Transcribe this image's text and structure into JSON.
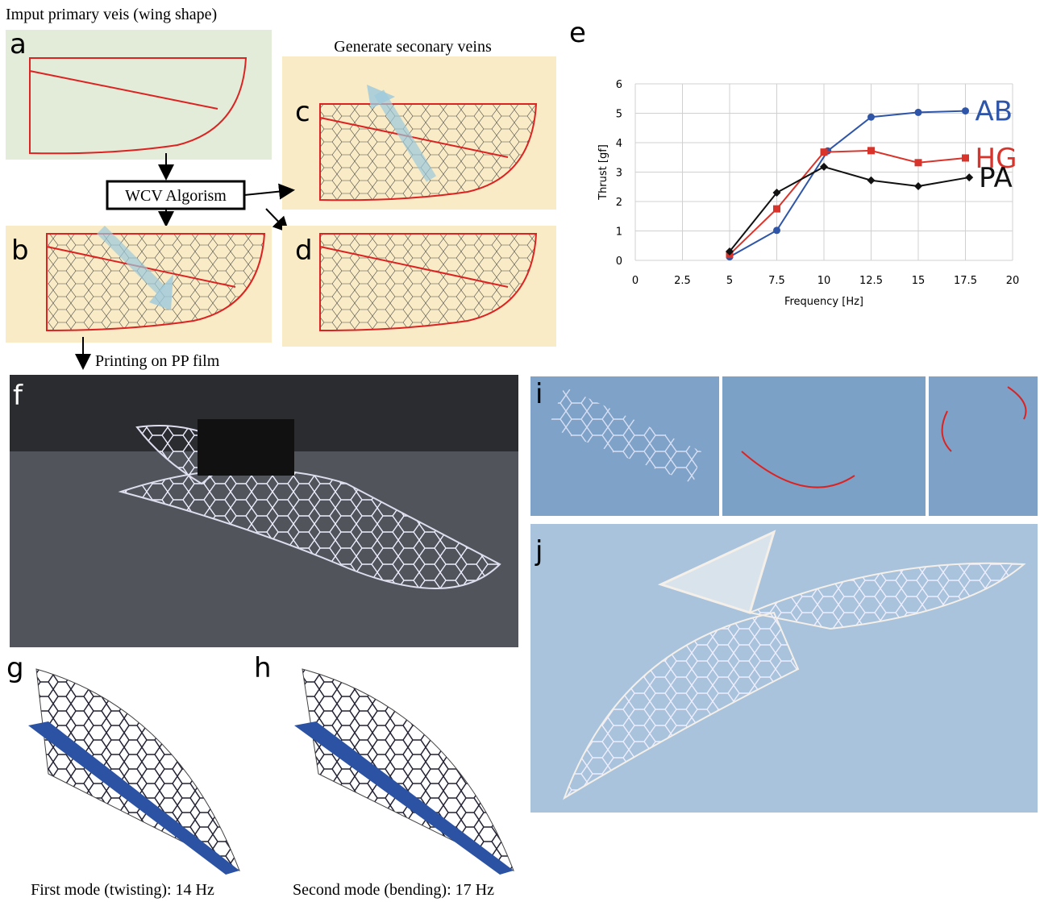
{
  "panels": {
    "a": {
      "letter": "a",
      "caption": "Imput primary veis (wing shape)"
    },
    "b": {
      "letter": "b"
    },
    "c": {
      "letter": "c",
      "caption": "Generate seconary veins"
    },
    "d": {
      "letter": "d"
    },
    "algorithm": "WCV Algorism",
    "printing": "Printing on PP film",
    "f": {
      "letter": "f"
    },
    "g": {
      "letter": "g",
      "caption": "First mode (twisting): 14 Hz"
    },
    "h": {
      "letter": "h",
      "caption": "Second mode (bending): 17 Hz"
    },
    "i": {
      "letter": "i"
    },
    "j": {
      "letter": "j"
    },
    "e": {
      "letter": "e"
    }
  },
  "chart_data": {
    "type": "line",
    "x_label": "Frequency [Hz]",
    "y_label": "Thrust [gf]",
    "xlim": [
      0,
      20
    ],
    "xticks": [
      0,
      2.5,
      5,
      7.5,
      10,
      12.5,
      15,
      17.5,
      20
    ],
    "ylim": [
      0,
      6
    ],
    "yticks": [
      0,
      1,
      2,
      3,
      4,
      5,
      6
    ],
    "grid": true,
    "series": [
      {
        "name": "AB",
        "color": "#2e55a8",
        "marker": "circle",
        "x": [
          5,
          7.5,
          10.2,
          12.5,
          15,
          17.5
        ],
        "values": [
          0.12,
          1.02,
          3.72,
          4.87,
          5.03,
          5.08
        ]
      },
      {
        "name": "HG",
        "color": "#d9342b",
        "marker": "square",
        "x": [
          5,
          7.5,
          10,
          12.5,
          15,
          17.5
        ],
        "values": [
          0.2,
          1.75,
          3.68,
          3.73,
          3.32,
          3.48
        ]
      },
      {
        "name": "PA",
        "color": "#111111",
        "marker": "diamond",
        "x": [
          5,
          7.5,
          10,
          12.5,
          15,
          17.7
        ],
        "values": [
          0.3,
          2.3,
          3.18,
          2.72,
          2.52,
          2.82
        ]
      }
    ]
  }
}
